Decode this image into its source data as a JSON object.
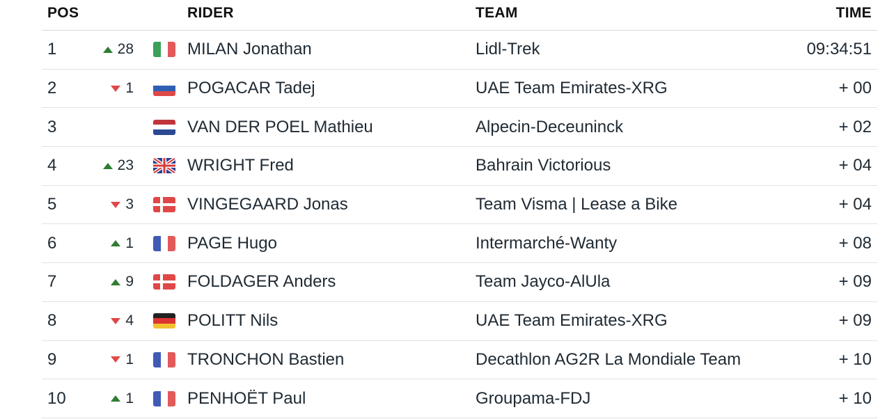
{
  "header": {
    "pos": "POS",
    "rider": "RIDER",
    "team": "TEAM",
    "time": "TIME"
  },
  "colors": {
    "up": "#2e7d32",
    "down": "#e04848"
  },
  "rows": [
    {
      "pos": "1",
      "dir": "up",
      "change": "28",
      "flag": "italy-flag",
      "rider": "MILAN Jonathan",
      "team": "Lidl-Trek",
      "time": "09:34:51"
    },
    {
      "pos": "2",
      "dir": "down",
      "change": "1",
      "flag": "slovenia-flag",
      "rider": "POGACAR Tadej",
      "team": "UAE Team Emirates-XRG",
      "time": "+ 00"
    },
    {
      "pos": "3",
      "dir": "none",
      "change": "",
      "flag": "netherlands-flag",
      "rider": "VAN DER POEL Mathieu",
      "team": "Alpecin-Deceuninck",
      "time": "+ 02"
    },
    {
      "pos": "4",
      "dir": "up",
      "change": "23",
      "flag": "uk-flag",
      "rider": "WRIGHT Fred",
      "team": "Bahrain Victorious",
      "time": "+ 04"
    },
    {
      "pos": "5",
      "dir": "down",
      "change": "3",
      "flag": "denmark-flag",
      "rider": "VINGEGAARD Jonas",
      "team": "Team Visma | Lease a Bike",
      "time": "+ 04"
    },
    {
      "pos": "6",
      "dir": "up",
      "change": "1",
      "flag": "france-flag",
      "rider": "PAGE Hugo",
      "team": "Intermarché-Wanty",
      "time": "+ 08"
    },
    {
      "pos": "7",
      "dir": "up",
      "change": "9",
      "flag": "denmark-flag",
      "rider": "FOLDAGER Anders",
      "team": "Team Jayco-AlUla",
      "time": "+ 09"
    },
    {
      "pos": "8",
      "dir": "down",
      "change": "4",
      "flag": "germany-flag",
      "rider": "POLITT Nils",
      "team": "UAE Team Emirates-XRG",
      "time": "+ 09"
    },
    {
      "pos": "9",
      "dir": "down",
      "change": "1",
      "flag": "france-flag",
      "rider": "TRONCHON Bastien",
      "team": "Decathlon AG2R La Mondiale Team",
      "time": "+ 10"
    },
    {
      "pos": "10",
      "dir": "up",
      "change": "1",
      "flag": "france-flag",
      "rider": "PENHOËT Paul",
      "team": "Groupama-FDJ",
      "time": "+ 10"
    }
  ]
}
